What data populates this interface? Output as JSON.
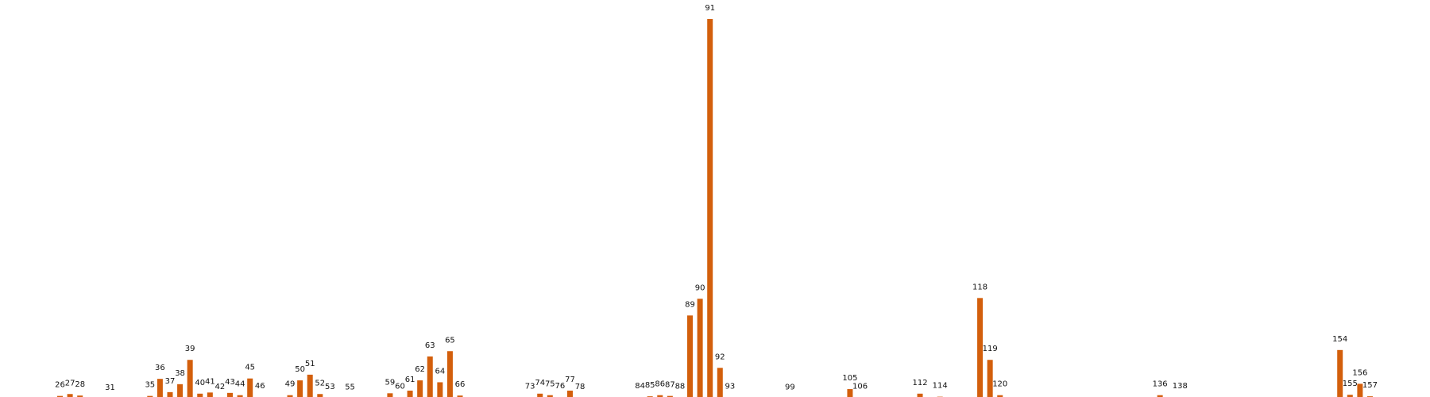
{
  "chart_data": {
    "type": "bar",
    "title": "",
    "xlabel": "",
    "ylabel": "",
    "bar_color": "#d35f0c",
    "grid": false,
    "axes_visible": false,
    "xlim": [
      20,
      163
    ],
    "ylim": [
      0,
      100
    ],
    "categories": [
      26,
      27,
      28,
      31,
      35,
      36,
      37,
      38,
      39,
      40,
      41,
      42,
      43,
      44,
      45,
      46,
      49,
      50,
      51,
      52,
      53,
      55,
      59,
      60,
      61,
      62,
      63,
      64,
      65,
      66,
      73,
      74,
      75,
      76,
      77,
      78,
      84,
      85,
      86,
      87,
      88,
      89,
      90,
      91,
      92,
      93,
      99,
      105,
      106,
      112,
      114,
      118,
      119,
      120,
      136,
      138,
      154,
      155,
      156,
      157
    ],
    "values": [
      0.7,
      1.2,
      0.8,
      0,
      0.7,
      5.2,
      1.7,
      3.8,
      10.2,
      1.3,
      1.6,
      0.2,
      1.5,
      0.9,
      5.3,
      0.4,
      0.9,
      4.8,
      6.3,
      1.2,
      0.2,
      0.1,
      1.4,
      0.3,
      2.1,
      4.8,
      11.1,
      4.3,
      12.5,
      0.8,
      0.3,
      1.3,
      0.9,
      0.4,
      2.1,
      0.2,
      0.4,
      0.6,
      0.9,
      0.7,
      0.3,
      21.9,
      26.3,
      100,
      8.1,
      0.3,
      0.1,
      2.5,
      0.3,
      1.3,
      0.5,
      26.5,
      10.2,
      0.9,
      0.9,
      0.4,
      12.8,
      1.0,
      3.9,
      0.6
    ]
  }
}
